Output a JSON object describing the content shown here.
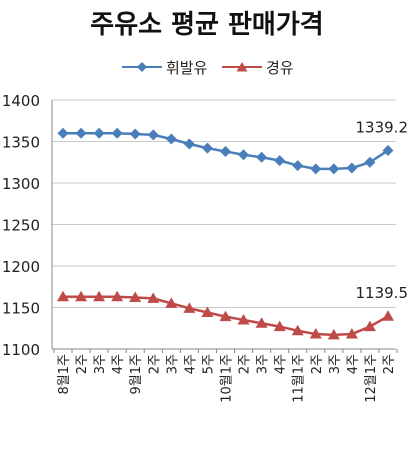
{
  "title": "주유소 평균 판매가격",
  "colors": {
    "gasoline": "#4a7ebb",
    "diesel": "#be4b48",
    "grid": "#c8c8c8",
    "axis": "#888888"
  },
  "chart_data": {
    "type": "line",
    "title": "주유소 평균 판매가격",
    "xlabel": "",
    "ylabel": "",
    "ylim": [
      1100,
      1400
    ],
    "yticks": [
      1100,
      1150,
      1200,
      1250,
      1300,
      1350,
      1400
    ],
    "grid": true,
    "legend": "top",
    "categories": [
      "8월1주",
      "2주",
      "3주",
      "4주",
      "9월1주",
      "2주",
      "3주",
      "4주",
      "5주",
      "10월1주",
      "2주",
      "3주",
      "4주",
      "11월1주",
      "2주",
      "3주",
      "4주",
      "12월1주",
      "2주"
    ],
    "series": [
      {
        "name": "휘발유",
        "color": "#4a7ebb",
        "marker": "diamond",
        "values": [
          1360,
          1360,
          1360,
          1360,
          1359,
          1358,
          1353,
          1347,
          1342,
          1338,
          1334,
          1331,
          1327,
          1321,
          1317,
          1317,
          1318,
          1325,
          1339.2
        ],
        "end_label": "1339.2"
      },
      {
        "name": "경유",
        "color": "#be4b48",
        "marker": "triangle",
        "values": [
          1163,
          1163,
          1163,
          1163,
          1162,
          1161,
          1155,
          1149,
          1144,
          1139,
          1135,
          1131,
          1127,
          1122,
          1118,
          1117,
          1118,
          1127,
          1139.5
        ],
        "end_label": "1139.5"
      }
    ]
  }
}
